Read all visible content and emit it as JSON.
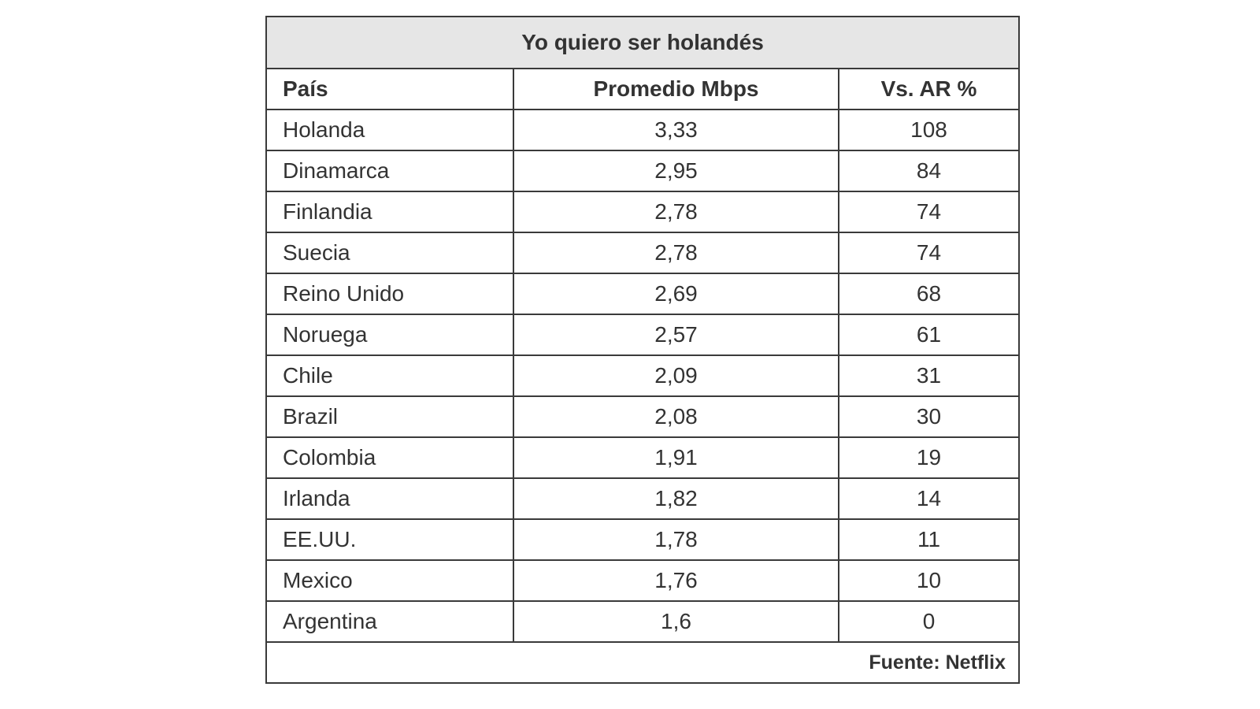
{
  "table": {
    "title": "Yo quiero ser holandés",
    "header": [
      "País",
      "Promedio Mbps",
      "Vs. AR %"
    ],
    "rows": [
      [
        "Holanda",
        "3,33",
        "108"
      ],
      [
        "Dinamarca",
        "2,95",
        "84"
      ],
      [
        "Finlandia",
        "2,78",
        "74"
      ],
      [
        "Suecia",
        "2,78",
        "74"
      ],
      [
        "Reino Unido",
        "2,69",
        "68"
      ],
      [
        "Noruega",
        "2,57",
        "61"
      ],
      [
        "Chile",
        "2,09",
        "31"
      ],
      [
        "Brazil",
        "2,08",
        "30"
      ],
      [
        "Colombia",
        "1,91",
        "19"
      ],
      [
        "Irlanda",
        "1,82",
        "14"
      ],
      [
        "EE.UU.",
        "1,78",
        "11"
      ],
      [
        "Mexico",
        "1,76",
        "10"
      ],
      [
        "Argentina",
        "1,6",
        "0"
      ]
    ],
    "source": "Fuente: Netflix"
  }
}
